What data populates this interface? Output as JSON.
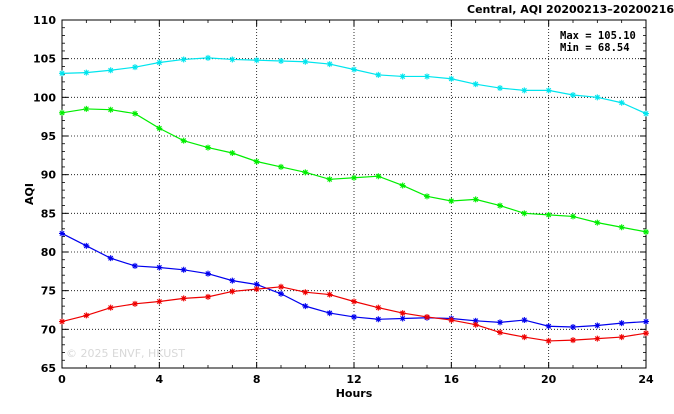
{
  "chart_data": {
    "type": "line",
    "title": "Central, AQI 20200213–20200216",
    "xlabel": "Hours",
    "ylabel": "AQI",
    "xlim": [
      0,
      24
    ],
    "ylim": [
      65,
      110
    ],
    "xticks": [
      0,
      4,
      8,
      12,
      16,
      20,
      24
    ],
    "yticks": [
      65,
      70,
      75,
      80,
      85,
      90,
      95,
      100,
      105,
      110
    ],
    "grid": true,
    "annotations": {
      "max_label": "Max = 105.10",
      "min_label": "Min =  68.54"
    },
    "watermark": "© 2025  ENVF, HKUST",
    "x": [
      0,
      1,
      2,
      3,
      4,
      5,
      6,
      7,
      8,
      9,
      10,
      11,
      12,
      13,
      14,
      15,
      16,
      17,
      18,
      19,
      20,
      21,
      22,
      23,
      24
    ],
    "series": [
      {
        "color": "#00e5ee",
        "values": [
          103.1,
          103.2,
          103.5,
          103.9,
          104.5,
          104.9,
          105.1,
          104.9,
          104.8,
          104.7,
          104.6,
          104.3,
          103.6,
          102.9,
          102.7,
          102.7,
          102.4,
          101.7,
          101.2,
          100.9,
          100.9,
          100.3,
          100.0,
          99.3,
          97.9
        ]
      },
      {
        "color": "#00ee00",
        "values": [
          98.0,
          98.5,
          98.4,
          97.9,
          96.0,
          94.4,
          93.5,
          92.8,
          91.7,
          91.0,
          90.3,
          89.4,
          89.6,
          89.8,
          88.6,
          87.2,
          86.6,
          86.8,
          86.0,
          85.0,
          84.8,
          84.6,
          83.8,
          83.2,
          82.6
        ]
      },
      {
        "color": "#0000ee",
        "values": [
          82.4,
          80.8,
          79.2,
          78.2,
          78.0,
          77.7,
          77.2,
          76.3,
          75.8,
          74.6,
          73.0,
          72.1,
          71.6,
          71.3,
          71.4,
          71.5,
          71.4,
          71.1,
          70.9,
          71.2,
          70.4,
          70.3,
          70.5,
          70.8,
          71.0
        ]
      },
      {
        "color": "#ee0000",
        "values": [
          71.0,
          71.8,
          72.8,
          73.3,
          73.6,
          74.0,
          74.2,
          74.9,
          75.2,
          75.5,
          74.8,
          74.5,
          73.6,
          72.8,
          72.1,
          71.6,
          71.2,
          70.6,
          69.6,
          69.0,
          68.5,
          68.6,
          68.8,
          69.0,
          69.5
        ]
      }
    ]
  }
}
